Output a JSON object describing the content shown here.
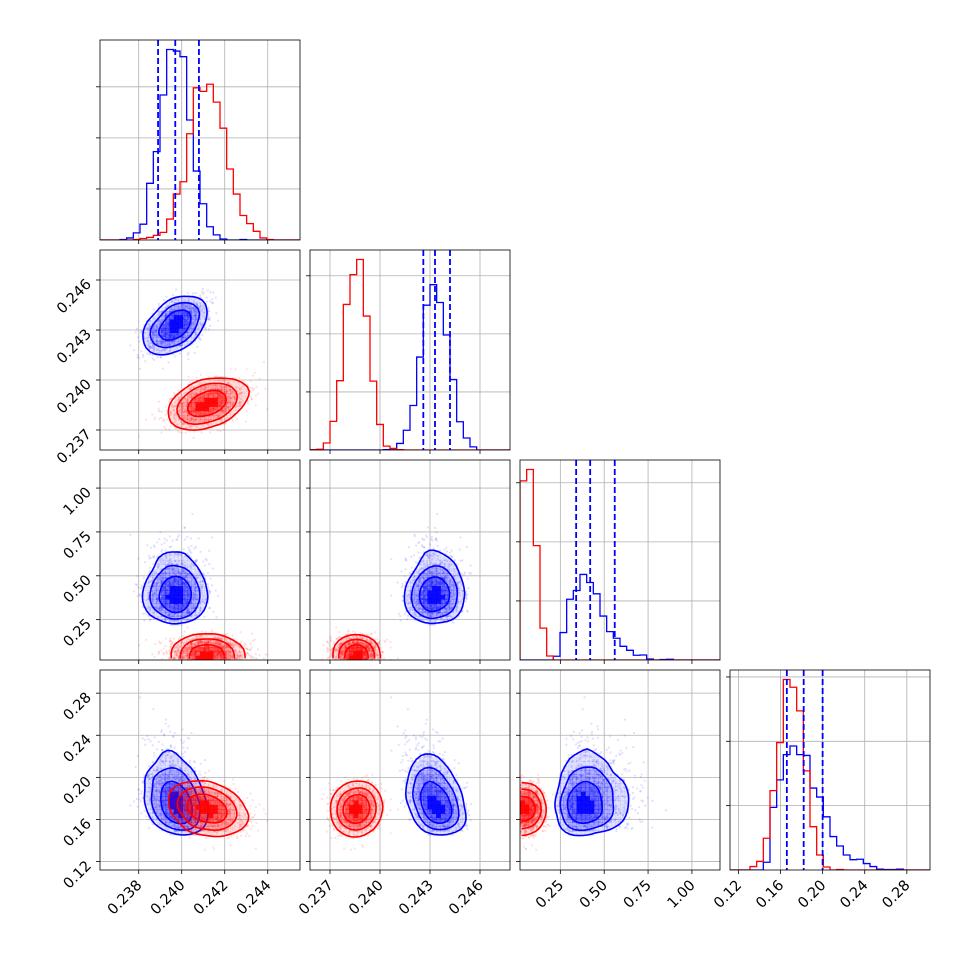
{
  "colors": {
    "blue": "#0000ff",
    "red": "#ff0000"
  },
  "chart_data": {
    "type": "corner",
    "grid": true,
    "legend": "none",
    "parameters": [
      {
        "range": [
          0.2362,
          0.2455
        ],
        "ticks": [
          0.238,
          0.24,
          0.242,
          0.244
        ],
        "tick_labels": [
          "0.238",
          "0.240",
          "0.242",
          "0.244"
        ]
      },
      {
        "range": [
          0.2358,
          0.2478
        ],
        "ticks": [
          0.237,
          0.24,
          0.243,
          0.246
        ],
        "tick_labels": [
          "0.237",
          "0.240",
          "0.243",
          "0.246"
        ]
      },
      {
        "range": [
          0.02,
          1.16
        ],
        "ticks": [
          0.25,
          0.5,
          0.75,
          1.0
        ],
        "tick_labels": [
          "0.25",
          "0.50",
          "0.75",
          "1.00"
        ]
      },
      {
        "range": [
          0.112,
          0.302
        ],
        "ticks": [
          0.12,
          0.16,
          0.2,
          0.24,
          0.28
        ],
        "tick_labels": [
          "0.12",
          "0.16",
          "0.20",
          "0.24",
          "0.28"
        ]
      }
    ],
    "series": [
      {
        "color": "blue",
        "mean": [
          0.2397,
          0.2433,
          0.42,
          0.182
        ],
        "sd": [
          0.0007,
          0.0008,
          0.1,
          0.02
        ],
        "skew": [
          0,
          0,
          1.2,
          1.4
        ],
        "corr": {
          "0-1": 0.5,
          "0-3": -0.25,
          "1-3": -0.35,
          "2-3": 0.1
        },
        "quantiles": [
          [
            0.2389,
            0.2397,
            0.2408
          ],
          [
            0.2426,
            0.2433,
            0.2442
          ],
          [
            0.34,
            0.42,
            0.56
          ],
          [
            0.166,
            0.182,
            0.2
          ]
        ]
      },
      {
        "color": "red",
        "mean": [
          0.2412,
          0.2386,
          0.075,
          0.17
        ],
        "sd": [
          0.0009,
          0.0007,
          0.04,
          0.012
        ],
        "skew": [
          0,
          0,
          0,
          0
        ],
        "corr": {
          "0-1": 0.45,
          "0-3": -0.3,
          "1-3": 0.05,
          "2-3": 0.0
        },
        "quantiles": []
      }
    ],
    "clip_lower": [
      null,
      null,
      0.02,
      null
    ]
  }
}
